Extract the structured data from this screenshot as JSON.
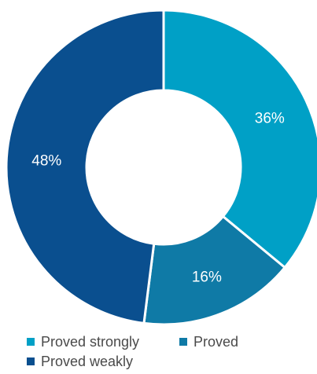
{
  "chart_data": {
    "type": "pie",
    "donut": true,
    "title": "",
    "categories": [
      "Proved strongly",
      "Proved",
      "Proved weakly"
    ],
    "values": [
      36,
      16,
      48
    ],
    "labels": [
      "36%",
      "16%",
      "48%"
    ],
    "colors": [
      "#00a0c6",
      "#0f7aa6",
      "#0a4f8f"
    ],
    "legend_position": "bottom",
    "label_color": "#ffffff"
  }
}
